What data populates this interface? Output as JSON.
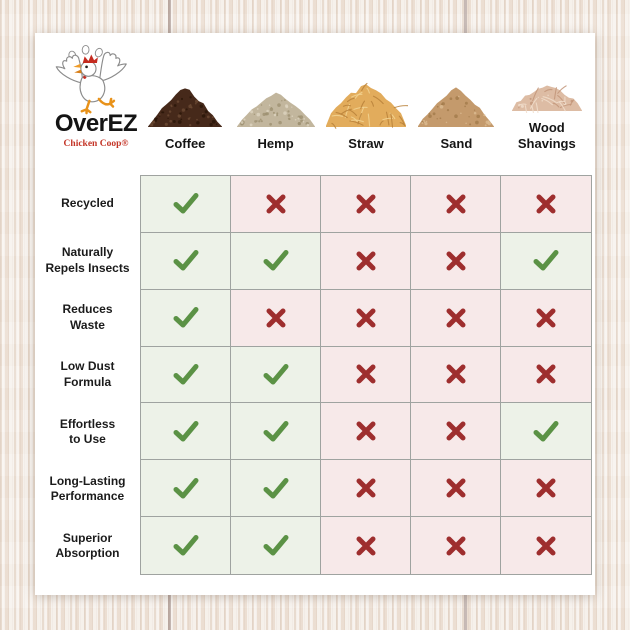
{
  "logo": {
    "title": "OverEZ",
    "subtitle": "Chicken Coop®"
  },
  "columns": [
    {
      "label": "Coffee",
      "pile": "coffee-pile"
    },
    {
      "label": "Hemp",
      "pile": "hemp-pile"
    },
    {
      "label": "Straw",
      "pile": "straw-pile"
    },
    {
      "label": "Sand",
      "pile": "sand-pile"
    },
    {
      "label": "Wood\nShavings",
      "pile": "wood-shavings-pile"
    }
  ],
  "rows": [
    "Recycled",
    "Naturally\nRepels Insects",
    "Reduces\nWaste",
    "Low Dust\nFormula",
    "Effortless\nto Use",
    "Long-Lasting\nPerformance",
    "Superior\nAbsorption"
  ],
  "matrix": [
    [
      true,
      false,
      false,
      false,
      false
    ],
    [
      true,
      true,
      false,
      false,
      true
    ],
    [
      true,
      false,
      false,
      false,
      false
    ],
    [
      true,
      true,
      false,
      false,
      false
    ],
    [
      true,
      true,
      false,
      false,
      true
    ],
    [
      true,
      true,
      false,
      false,
      false
    ],
    [
      true,
      true,
      false,
      false,
      false
    ]
  ],
  "colors": {
    "check": "#5b9245",
    "cross": "#9e2e2e",
    "cell_yes_bg": "#edf2e8",
    "cell_no_bg": "#f7e9e9",
    "grid_line": "#9fa3a0",
    "logo_text": "#141414",
    "logo_subtitle": "#c43527"
  },
  "piles": {
    "coffee": {
      "base": "#46291a",
      "light": "#6b4a33",
      "dark": "#291507"
    },
    "hemp": {
      "base": "#c2b69d",
      "light": "#ddd4c1",
      "dark": "#9e9172"
    },
    "straw": {
      "base": "#e2ac5c",
      "light": "#f2d392",
      "dark": "#b9813a"
    },
    "sand": {
      "base": "#c49a6c",
      "light": "#dcbc92",
      "dark": "#a37a4b"
    },
    "wood_shavings": {
      "base": "#ddbca4",
      "light": "#f1decd",
      "dark": "#c29579"
    }
  },
  "chart_data": {
    "type": "table",
    "title": "OverEZ Chicken Coop bedding comparison",
    "columns": [
      "Coffee",
      "Hemp",
      "Straw",
      "Sand",
      "Wood Shavings"
    ],
    "rows": [
      "Recycled",
      "Naturally Repels Insects",
      "Reduces Waste",
      "Low Dust Formula",
      "Effortless to Use",
      "Long-Lasting Performance",
      "Superior Absorption"
    ],
    "values": [
      [
        true,
        false,
        false,
        false,
        false
      ],
      [
        true,
        true,
        false,
        false,
        true
      ],
      [
        true,
        false,
        false,
        false,
        false
      ],
      [
        true,
        true,
        false,
        false,
        false
      ],
      [
        true,
        true,
        false,
        false,
        true
      ],
      [
        true,
        true,
        false,
        false,
        false
      ],
      [
        true,
        true,
        false,
        false,
        false
      ]
    ],
    "legend": "check = feature present, cross = feature absent",
    "legend_position": "none"
  }
}
